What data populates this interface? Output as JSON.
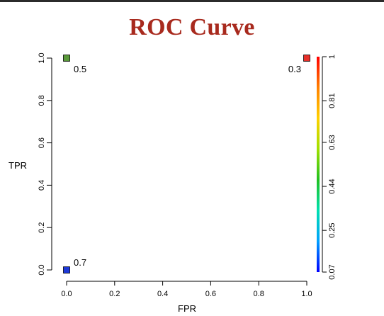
{
  "chart_data": {
    "type": "scatter",
    "title": "ROC Curve",
    "xlabel": "FPR",
    "ylabel": "TPR",
    "xlim": [
      0.0,
      1.0
    ],
    "ylim": [
      0.0,
      1.0
    ],
    "xticks": [
      "0.0",
      "0.2",
      "0.4",
      "0.6",
      "0.8",
      "1.0"
    ],
    "yticks": [
      "0.0",
      "0.2",
      "0.4",
      "0.6",
      "0.8",
      "1.0"
    ],
    "grid": false,
    "points": [
      {
        "x": 0.0,
        "y": 1.0,
        "label": "0.5",
        "color": "#5a9a3a"
      },
      {
        "x": 1.0,
        "y": 1.0,
        "label": "0.3",
        "color": "#e8302a"
      },
      {
        "x": 0.0,
        "y": 0.0,
        "label": "0.7",
        "color": "#1d39d8"
      }
    ],
    "colorbar": {
      "ticks": [
        "1",
        "0.81",
        "0.63",
        "0.44",
        "0.25",
        "0.07"
      ],
      "tick_values": [
        1.0,
        0.81,
        0.63,
        0.44,
        0.25,
        0.07
      ],
      "range": [
        0.07,
        1.0
      ],
      "gradient": [
        "#0000ff",
        "#00a0ff",
        "#00e0b0",
        "#20c020",
        "#a0e000",
        "#ffd000",
        "#ff8000",
        "#ff0000"
      ]
    }
  }
}
